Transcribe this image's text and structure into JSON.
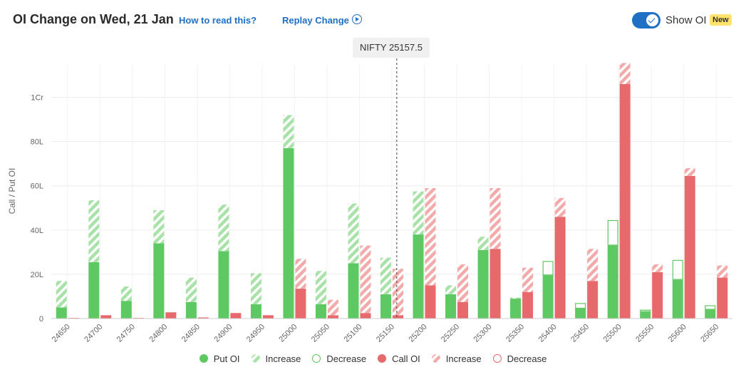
{
  "header": {
    "title": "OI Change on Wed, 21 Jan",
    "how_to_read": "How to read this?",
    "replay": "Replay Change",
    "show_oi": "Show OI",
    "new_badge": "New"
  },
  "colors": {
    "put": "#5ec962",
    "put_increase_stripe": "#a9e2a9",
    "call": "#e8696b",
    "call_increase_stripe": "#f3aaab",
    "toggle": "#1f6fc5"
  },
  "chart_data": {
    "type": "bar",
    "spot_label": "NIFTY 25157.5",
    "spot_value": 25157.5,
    "ylabel": "Call / Put OI",
    "ylim": [
      0,
      1150
    ],
    "yticks": [
      0,
      200,
      400,
      600,
      800,
      1000
    ],
    "ytick_labels": [
      "0",
      "20L",
      "40L",
      "60L",
      "80L",
      "1Cr"
    ],
    "categories": [
      "24650",
      "24700",
      "24750",
      "24800",
      "24850",
      "24900",
      "24950",
      "25000",
      "25050",
      "25100",
      "25150",
      "25200",
      "25250",
      "25300",
      "25350",
      "25400",
      "25450",
      "25500",
      "25550",
      "25600",
      "25650"
    ],
    "series": [
      {
        "name": "Put OI",
        "values": [
          50,
          255,
          80,
          340,
          75,
          305,
          65,
          770,
          65,
          250,
          110,
          380,
          110,
          310,
          90,
          195,
          45,
          330,
          30,
          175,
          40
        ],
        "increase": [
          120,
          280,
          65,
          150,
          110,
          210,
          140,
          150,
          150,
          270,
          165,
          195,
          40,
          60,
          5,
          0,
          0,
          0,
          0,
          0,
          0
        ],
        "decrease": [
          0,
          0,
          0,
          0,
          0,
          0,
          0,
          0,
          0,
          0,
          0,
          0,
          0,
          0,
          0,
          65,
          25,
          115,
          10,
          90,
          20
        ]
      },
      {
        "name": "Call OI",
        "values": [
          3,
          15,
          3,
          28,
          5,
          25,
          15,
          135,
          15,
          25,
          15,
          150,
          75,
          315,
          120,
          460,
          170,
          1060,
          210,
          645,
          185
        ],
        "increase": [
          0,
          0,
          0,
          0,
          0,
          0,
          0,
          135,
          70,
          305,
          210,
          440,
          170,
          275,
          110,
          85,
          145,
          95,
          35,
          35,
          55
        ],
        "decrease": [
          0,
          0,
          0,
          0,
          0,
          0,
          0,
          0,
          0,
          0,
          0,
          0,
          0,
          0,
          0,
          0,
          0,
          0,
          0,
          0,
          0
        ]
      }
    ],
    "legend": [
      "Put OI",
      "Increase",
      "Decrease",
      "Call OI",
      "Increase",
      "Decrease"
    ],
    "legend_placement": "bottom",
    "grid": true
  }
}
